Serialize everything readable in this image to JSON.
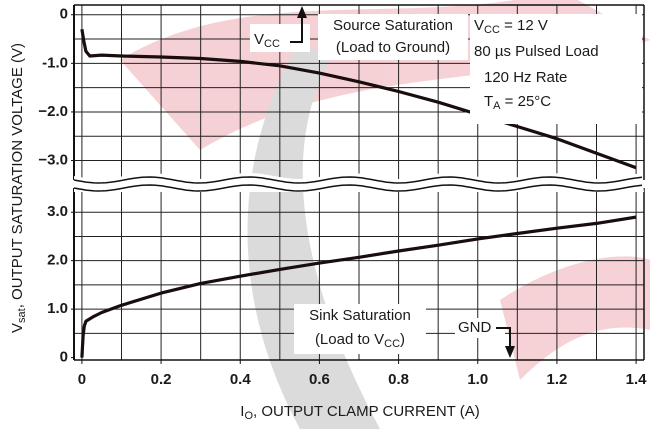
{
  "chart_data": [
    {
      "type": "line",
      "panel": "upper",
      "y_label": {
        "main": "V",
        "sub": "sat",
        "rest": ", OUTPUT SATURATION VOLTAGE (V)"
      },
      "xlim": [
        -0.02,
        1.42
      ],
      "ylim": [
        -3.4,
        0.2
      ],
      "yticks": [
        0,
        {
          "value": -1,
          "label": "-1.0"
        },
        {
          "value": -2,
          "label": "−2.0"
        },
        {
          "value": -3,
          "label": "−3.0"
        }
      ],
      "xgrid": [
        0,
        0.1,
        0.2,
        0.3,
        0.4,
        0.5,
        0.6,
        0.7,
        0.8,
        0.9,
        1.0,
        1.1,
        1.2,
        1.3,
        1.4
      ],
      "ygrid": [
        0,
        -0.5,
        -1.0,
        -1.5,
        -2.0,
        -2.5,
        -3.0
      ],
      "color": "#1a0d0d",
      "x": [
        0,
        0.005,
        0.01,
        0.02,
        0.05,
        0.1,
        0.2,
        0.3,
        0.4,
        0.5,
        0.6,
        0.7,
        0.8,
        0.9,
        1.0,
        1.1,
        1.2,
        1.3,
        1.4
      ],
      "values": [
        -0.3,
        -0.55,
        -0.75,
        -0.85,
        -0.83,
        -0.85,
        -0.87,
        -0.9,
        -0.96,
        -1.05,
        -1.2,
        -1.38,
        -1.58,
        -1.8,
        -2.05,
        -2.3,
        -2.55,
        -2.85,
        -3.15
      ],
      "annotations": {
        "vcc_arrow": {
          "main": "V",
          "sub": "CC"
        },
        "source_1": "Source Saturation",
        "source_2": "(Load to Ground)",
        "cond_1": {
          "main": "V",
          "sub": "CC",
          "rest": " = 12 V"
        },
        "cond_2": "80  µs Pulsed Load",
        "cond_3": "120 Hz Rate",
        "cond_4": {
          "main": "T",
          "sub": "A",
          "rest": " = 25°C"
        }
      }
    },
    {
      "type": "line",
      "panel": "lower",
      "x_label": {
        "main": "I",
        "sub": "O",
        "rest": ", OUTPUT CLAMP CURRENT (A)"
      },
      "xlim": [
        -0.02,
        1.42
      ],
      "ylim": [
        -0.05,
        3.5
      ],
      "xticks": [
        0,
        0.2,
        0.4,
        0.6,
        0.8,
        {
          "value": 1,
          "label": "1.0"
        },
        1.2,
        1.4
      ],
      "yticks": [
        0,
        {
          "value": 1,
          "label": "1.0"
        },
        {
          "value": 2,
          "label": "2.0"
        },
        {
          "value": 3,
          "label": "3.0"
        }
      ],
      "xgrid": [
        0,
        0.1,
        0.2,
        0.3,
        0.4,
        0.5,
        0.6,
        0.7,
        0.8,
        0.9,
        1.0,
        1.1,
        1.2,
        1.3,
        1.4
      ],
      "ygrid": [
        0.5,
        1.0,
        1.5,
        2.0,
        2.5,
        3.0
      ],
      "color": "#1a0d0d",
      "x": [
        0,
        0.003,
        0.006,
        0.01,
        0.03,
        0.05,
        0.1,
        0.2,
        0.3,
        0.4,
        0.5,
        0.6,
        0.7,
        0.8,
        0.9,
        1.0,
        1.1,
        1.2,
        1.3,
        1.4
      ],
      "values": [
        0,
        0.45,
        0.65,
        0.75,
        0.85,
        0.93,
        1.08,
        1.33,
        1.53,
        1.68,
        1.82,
        1.95,
        2.07,
        2.2,
        2.32,
        2.45,
        2.56,
        2.67,
        2.77,
        2.9
      ],
      "annotations": {
        "sink_1": "Sink Saturation",
        "sink_2": {
          "main": "(Load to V",
          "sub": "CC",
          "rest": ")"
        },
        "gnd": "GND"
      }
    }
  ]
}
